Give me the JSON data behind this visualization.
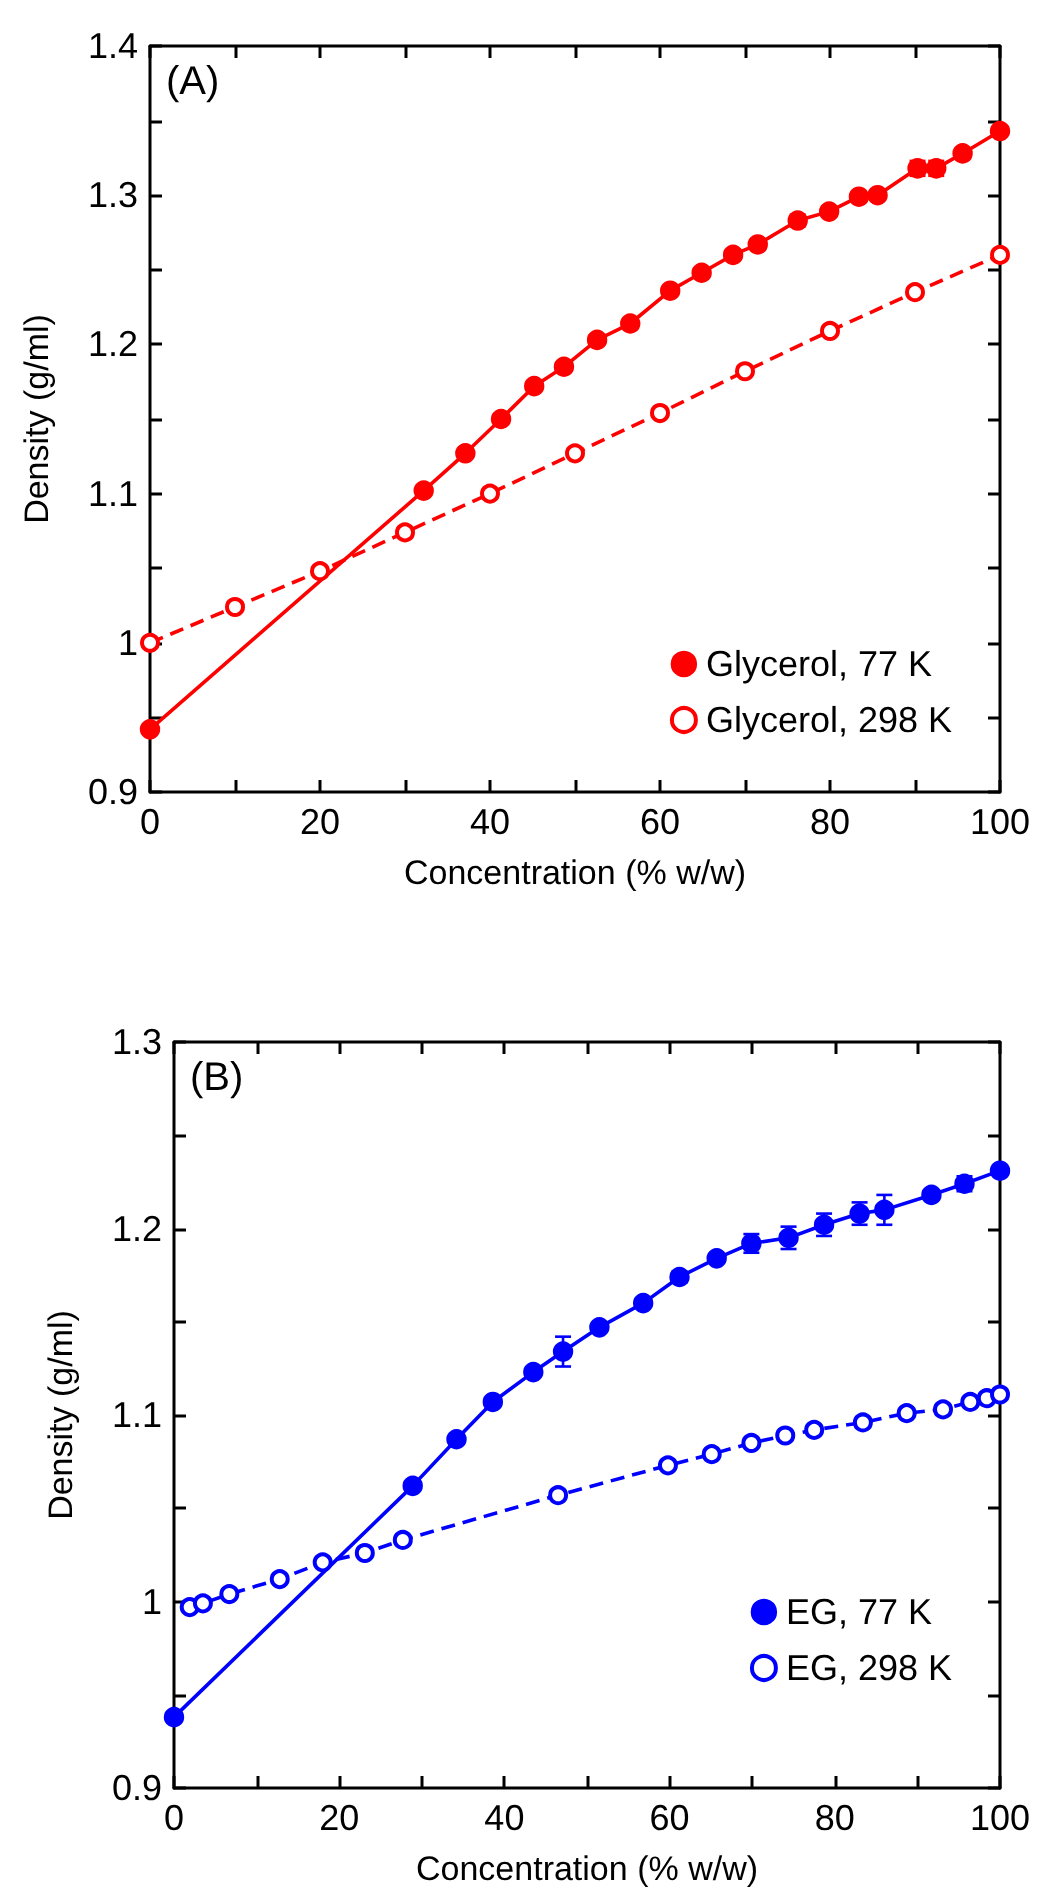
{
  "chart_data": [
    {
      "type": "line",
      "xlabel": "Concentration (% w/w)",
      "ylabel": "Density (g/ml)",
      "annotations": [
        "(A)"
      ],
      "xlim": [
        0,
        100
      ],
      "ylim": [
        0.9,
        1.4
      ],
      "xticks": [
        0,
        {
          "value": 10,
          "label": null
        },
        20,
        {
          "value": 30,
          "label": null
        },
        40,
        {
          "value": 50,
          "label": null
        },
        60,
        {
          "value": 70,
          "label": null
        },
        80,
        {
          "value": 90,
          "label": null
        },
        100
      ],
      "yticks": [
        0.9,
        {
          "value": 0.95,
          "label": null
        },
        1,
        {
          "value": 1.05,
          "label": null
        },
        1.1,
        {
          "value": 1.15,
          "label": null
        },
        1.2,
        {
          "value": 1.25,
          "label": null
        },
        1.3,
        {
          "value": 1.35,
          "label": null
        },
        1.4
      ],
      "grid": false,
      "legend": "bottom right",
      "marker": "circle",
      "series": [
        {
          "name": "Glycerol, 77 K",
          "color": "#ff0000",
          "line_style": "solid",
          "x": [
            0,
            32.2,
            37.1,
            41.3,
            45.2,
            48.7,
            52.6,
            56.5,
            61.2,
            64.9,
            68.6,
            71.5,
            76.2,
            79.9,
            83.4,
            85.6,
            90.3,
            92.5,
            95.6,
            100
          ],
          "values": [
            0.942,
            1.102,
            1.127,
            1.15,
            1.172,
            1.185,
            1.203,
            1.214,
            1.236,
            1.248,
            1.26,
            1.267,
            1.283,
            1.289,
            1.299,
            1.3,
            1.318,
            1.318,
            1.328,
            1.343
          ],
          "errors": [
            null,
            null,
            null,
            null,
            null,
            null,
            null,
            null,
            null,
            null,
            null,
            null,
            0.004,
            null,
            null,
            null,
            0.005,
            0.005,
            null,
            null
          ]
        },
        {
          "name": "Glycerol, 298 K",
          "color": "#ff0000",
          "line_style": "dashed",
          "x": [
            0,
            10,
            20,
            30,
            40,
            50,
            60,
            70,
            80,
            90,
            100
          ],
          "values": [
            1.0,
            1.024,
            1.048,
            1.074,
            1.1,
            1.127,
            1.154,
            1.182,
            1.209,
            1.235,
            1.26
          ]
        }
      ]
    },
    {
      "type": "line",
      "xlabel": "Concentration (% w/w)",
      "ylabel": "Density (g/ml)",
      "annotations": [
        "(B)"
      ],
      "xlim": [
        0,
        100
      ],
      "ylim": [
        0.9,
        1.3
      ],
      "xticks": [
        0,
        {
          "value": 10,
          "label": null
        },
        20,
        {
          "value": 30,
          "label": null
        },
        40,
        {
          "value": 50,
          "label": null
        },
        60,
        {
          "value": 70,
          "label": null
        },
        80,
        {
          "value": 90,
          "label": null
        },
        100
      ],
      "yticks": [
        0.9,
        {
          "value": 0.95,
          "label": null
        },
        1,
        {
          "value": 1.05,
          "label": null
        },
        1.1,
        {
          "value": 1.15,
          "label": null
        },
        1.2,
        {
          "value": 1.25,
          "label": null
        },
        1.3
      ],
      "grid": false,
      "legend": "bottom right",
      "marker": "circle",
      "series": [
        {
          "name": "EG, 77 K",
          "color": "#0000ff",
          "line_style": "solid",
          "x": [
            0,
            28.9,
            34.2,
            38.6,
            43.5,
            47.1,
            51.5,
            56.8,
            61.2,
            65.7,
            69.9,
            74.4,
            78.7,
            83,
            86,
            91.7,
            95.7,
            100
          ],
          "values": [
            0.938,
            1.062,
            1.087,
            1.107,
            1.123,
            1.134,
            1.147,
            1.16,
            1.174,
            1.184,
            1.192,
            1.195,
            1.202,
            1.208,
            1.21,
            1.218,
            1.224,
            1.231
          ],
          "errors": [
            null,
            null,
            null,
            null,
            null,
            0.008,
            null,
            null,
            0.003,
            null,
            0.005,
            0.006,
            0.006,
            0.006,
            0.008,
            null,
            0.004,
            null
          ]
        },
        {
          "name": "EG, 298 K",
          "color": "#0000ff",
          "line_style": "dashed",
          "x": [
            1.9,
            3.5,
            6.7,
            12.8,
            18,
            23.1,
            27.7,
            46.5,
            59.8,
            65.1,
            69.9,
            74,
            77.5,
            83.4,
            88.7,
            93.1,
            96.4,
            98.4,
            100
          ],
          "values": [
            0.997,
            0.999,
            1.004,
            1.012,
            1.021,
            1.026,
            1.033,
            1.057,
            1.073,
            1.079,
            1.085,
            1.089,
            1.092,
            1.096,
            1.101,
            1.103,
            1.107,
            1.109,
            1.111
          ]
        }
      ]
    }
  ]
}
